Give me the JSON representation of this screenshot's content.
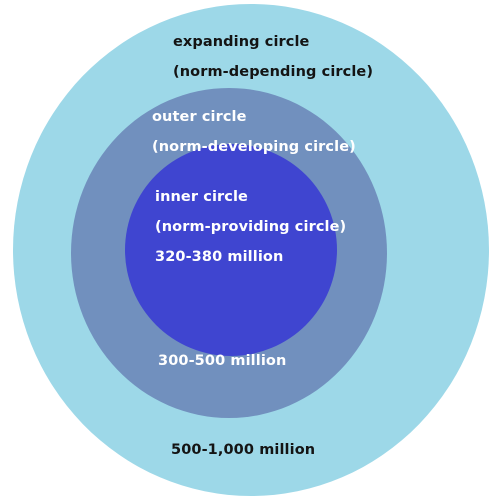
{
  "colors": {
    "expanding": "#9dd8e8",
    "outer": "#7190be",
    "inner": "#3f45d0",
    "text_dark": "#141414",
    "text_light": "#ffffff"
  },
  "circles": {
    "expanding": {
      "title": "expanding circle",
      "subtitle": "(norm-depending circle)",
      "population": "500-1,000 million"
    },
    "outer": {
      "title": "outer circle",
      "subtitle": "(norm-developing circle)",
      "population": "300-500 million"
    },
    "inner": {
      "title": "inner circle",
      "subtitle": "(norm-providing circle)",
      "population": "320-380 million"
    }
  }
}
